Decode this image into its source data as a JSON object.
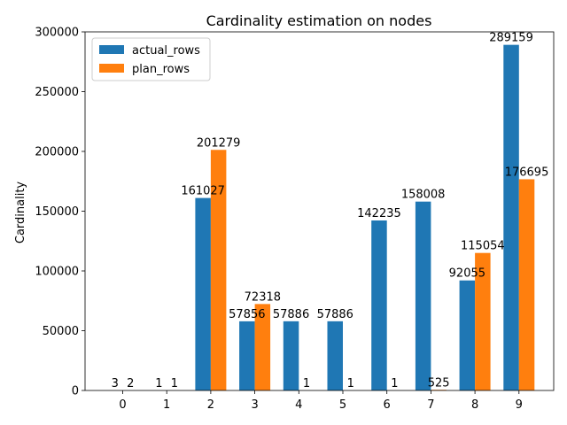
{
  "chart_data": {
    "type": "bar",
    "title": "Cardinality estimation on nodes",
    "xlabel": "",
    "ylabel": "Cardinality",
    "categories": [
      "0",
      "1",
      "2",
      "3",
      "4",
      "5",
      "6",
      "7",
      "8",
      "9"
    ],
    "series": [
      {
        "name": "actual_rows",
        "color": "#1f77b4",
        "values": [
          3,
          1,
          161027,
          57856,
          57886,
          57886,
          142235,
          158008,
          92055,
          289159
        ]
      },
      {
        "name": "plan_rows",
        "color": "#ff7f0e",
        "values": [
          2,
          1,
          201279,
          72318,
          1,
          1,
          1,
          525,
          115054,
          176695
        ]
      }
    ],
    "ylim": [
      0,
      300000
    ],
    "yticks": [
      0,
      50000,
      100000,
      150000,
      200000,
      250000,
      300000
    ],
    "ytick_labels": [
      "0",
      "50000",
      "100000",
      "150000",
      "200000",
      "250000",
      "300000"
    ],
    "legend": "top-left",
    "grid": false
  }
}
